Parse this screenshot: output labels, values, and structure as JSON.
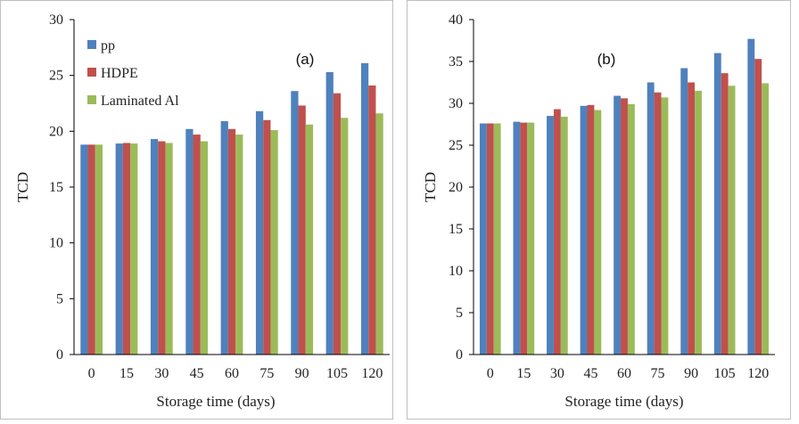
{
  "colors": {
    "pp": "#4f81bd",
    "HDPE": "#c0504d",
    "Laminated Al": "#9bbb59"
  },
  "chart_data": [
    {
      "type": "bar",
      "panel_tag": "(a)",
      "categories": [
        "0",
        "15",
        "30",
        "45",
        "60",
        "75",
        "90",
        "105",
        "120"
      ],
      "series": [
        {
          "name": "pp",
          "values": [
            18.8,
            18.9,
            19.3,
            20.2,
            20.9,
            21.8,
            23.6,
            25.3,
            26.1
          ]
        },
        {
          "name": "HDPE",
          "values": [
            18.8,
            18.95,
            19.1,
            19.7,
            20.2,
            21.0,
            22.3,
            23.4,
            24.1
          ]
        },
        {
          "name": "Laminated Al",
          "values": [
            18.8,
            18.9,
            18.95,
            19.1,
            19.7,
            20.1,
            20.6,
            21.2,
            21.6
          ]
        }
      ],
      "xlabel": "Storage time (days)",
      "ylabel": "TCD",
      "ylim": [
        0,
        30
      ],
      "yticks": [
        "0",
        "5",
        "10",
        "15",
        "20",
        "25",
        "30"
      ],
      "legend": {
        "placement": "top-left",
        "entries": [
          "pp",
          "HDPE",
          "Laminated Al"
        ]
      },
      "grid": false
    },
    {
      "type": "bar",
      "panel_tag": "(b)",
      "categories": [
        "0",
        "15",
        "30",
        "45",
        "60",
        "75",
        "90",
        "105",
        "120"
      ],
      "series": [
        {
          "name": "pp",
          "values": [
            27.6,
            27.8,
            28.5,
            29.7,
            30.9,
            32.5,
            34.2,
            36.0,
            37.7
          ]
        },
        {
          "name": "HDPE",
          "values": [
            27.6,
            27.7,
            29.3,
            29.8,
            30.6,
            31.3,
            32.5,
            33.6,
            35.3
          ]
        },
        {
          "name": "Laminated Al",
          "values": [
            27.6,
            27.7,
            28.4,
            29.2,
            29.9,
            30.7,
            31.5,
            32.1,
            32.4
          ]
        }
      ],
      "xlabel": "Storage time (days)",
      "ylabel": "TCD",
      "ylim": [
        0,
        40
      ],
      "yticks": [
        "0",
        "5",
        "10",
        "15",
        "20",
        "25",
        "30",
        "35",
        "40"
      ],
      "grid": false
    }
  ]
}
